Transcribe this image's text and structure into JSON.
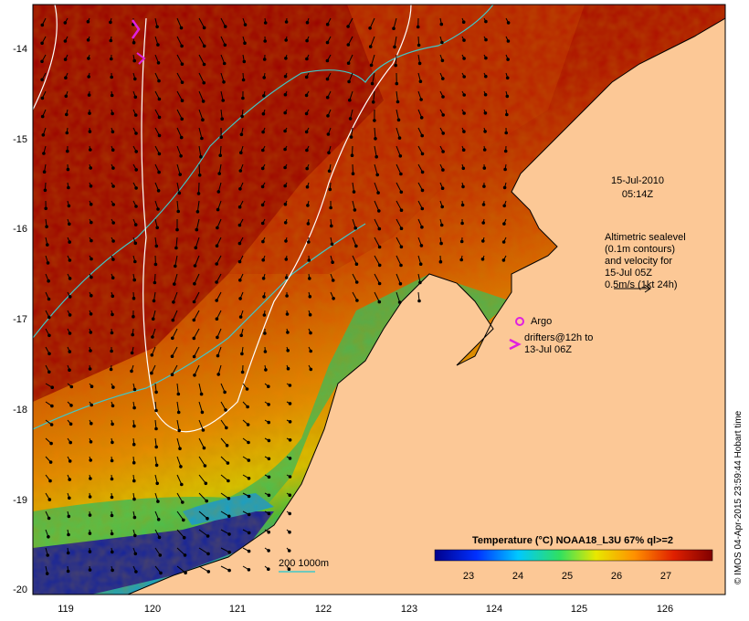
{
  "map": {
    "lon_ticks": [
      "119",
      "120",
      "121",
      "122",
      "123",
      "124",
      "125",
      "126"
    ],
    "lat_ticks": [
      "-14",
      "-15",
      "-16",
      "-17",
      "-18",
      "-19",
      "-20"
    ],
    "date_line1": "15-Jul-2010",
    "date_line2": "05:14Z",
    "altimetry_lines": [
      "Altimetric sealevel",
      "(0.1m contours)",
      "and velocity for",
      "15-Jul 05Z",
      "0.5m/s (1kt 24h)"
    ],
    "argo_label": "Argo",
    "drifter_line1": "drifters@12h to",
    "drifter_line2": "13-Jul 06Z",
    "depth_label": "200  1000m",
    "colorbar_title": "Temperature (°C) NOAA18_L3U 67% ql>=2",
    "colorbar_ticks": [
      "23",
      "24",
      "25",
      "26",
      "27"
    ],
    "credit": "© IMOS 04-Apr-2015 23:59:44 Hobart time"
  },
  "colors": {
    "land": "#fcc896",
    "warm": "#a00000",
    "cool": "#2b1fb0",
    "contour_200": "#40c8c8",
    "contour_1000": "#ffffff",
    "argo": "#e020e0"
  }
}
